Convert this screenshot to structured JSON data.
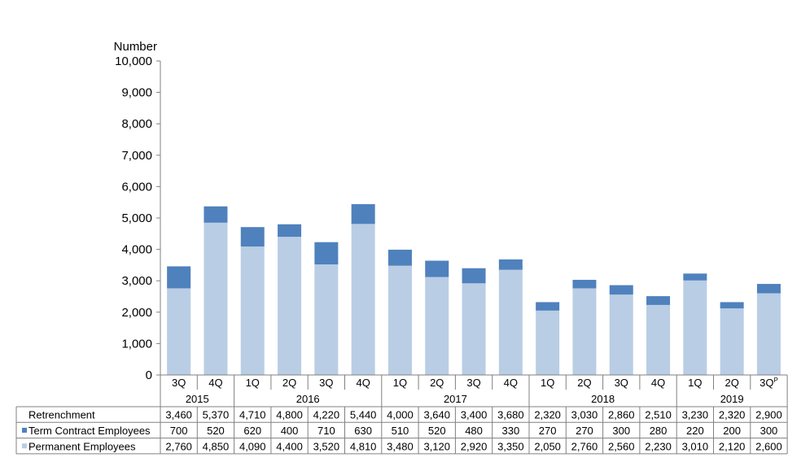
{
  "chart_data": {
    "type": "bar",
    "stacked": true,
    "ylabel": "Number",
    "ylim": [
      0,
      10000
    ],
    "yticks": [
      "0",
      "1,000",
      "2,000",
      "3,000",
      "4,000",
      "5,000",
      "6,000",
      "7,000",
      "8,000",
      "9,000",
      "10,000"
    ],
    "categories": [
      "3Q",
      "4Q",
      "1Q",
      "2Q",
      "3Q",
      "4Q",
      "1Q",
      "2Q",
      "3Q",
      "4Q",
      "1Q",
      "2Q",
      "3Q",
      "4Q",
      "1Q",
      "2Q",
      "3Q"
    ],
    "last_category_superscript": "P",
    "year_groups": [
      {
        "label": "2015",
        "span": 2
      },
      {
        "label": "2016",
        "span": 4
      },
      {
        "label": "2017",
        "span": 4
      },
      {
        "label": "2018",
        "span": 4
      },
      {
        "label": "2019",
        "span": 3
      }
    ],
    "series": [
      {
        "name": "Permanent Employees",
        "color": "#b9cde5",
        "values": [
          2760,
          4850,
          4090,
          4400,
          3520,
          4810,
          3480,
          3120,
          2920,
          3350,
          2050,
          2760,
          2560,
          2230,
          3010,
          2120,
          2600
        ]
      },
      {
        "name": "Term Contract Employees",
        "color": "#4f81bd",
        "values": [
          700,
          520,
          620,
          400,
          710,
          630,
          510,
          520,
          480,
          330,
          270,
          270,
          300,
          280,
          220,
          200,
          300
        ]
      }
    ],
    "totals_row": {
      "name": "Retrenchment",
      "values": [
        3460,
        5370,
        4710,
        4800,
        4220,
        5440,
        4000,
        3640,
        3400,
        3680,
        2320,
        3030,
        2860,
        2510,
        3230,
        2320,
        2900
      ]
    },
    "table_rows": [
      {
        "name": "Retrenchment",
        "marker": false,
        "cells": [
          "3,460",
          "5,370",
          "4,710",
          "4,800",
          "4,220",
          "5,440",
          "4,000",
          "3,640",
          "3,400",
          "3,680",
          "2,320",
          "3,030",
          "2,860",
          "2,510",
          "3,230",
          "2,320",
          "2,900"
        ]
      },
      {
        "name": "Term Contract Employees",
        "marker": true,
        "color": "#4f81bd",
        "cells": [
          "700",
          "520",
          "620",
          "400",
          "710",
          "630",
          "510",
          "520",
          "480",
          "330",
          "270",
          "270",
          "300",
          "280",
          "220",
          "200",
          "300"
        ]
      },
      {
        "name": "Permanent Employees",
        "marker": true,
        "color": "#b9cde5",
        "cells": [
          "2,760",
          "4,850",
          "4,090",
          "4,400",
          "3,520",
          "4,810",
          "3,480",
          "3,120",
          "2,920",
          "3,350",
          "2,050",
          "2,760",
          "2,560",
          "2,230",
          "3,010",
          "2,120",
          "2,600"
        ]
      }
    ],
    "grid": false,
    "legend": "data-table"
  }
}
